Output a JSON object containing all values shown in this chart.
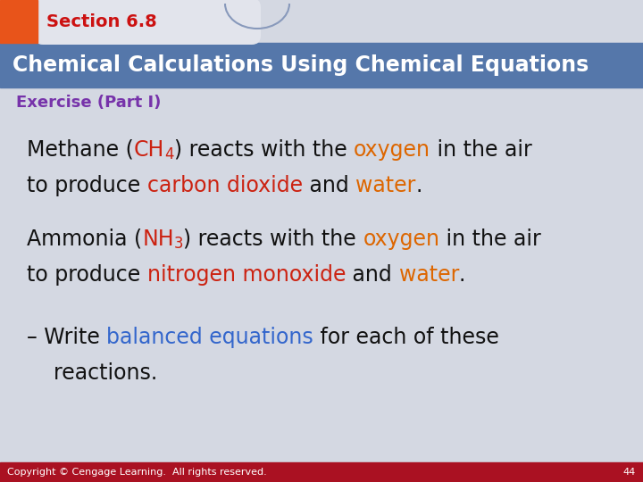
{
  "bg_color": "#d4d8e2",
  "orange_rect_color": "#e8541a",
  "tab_color": "#e2e4ec",
  "blue_bar_color": "#5577aa",
  "blue_bar_text": "Chemical Calculations Using Chemical Equations",
  "blue_bar_text_color": "#ffffff",
  "section_label": "Section 6.8",
  "section_label_color": "#cc1111",
  "exercise_label": "Exercise (Part I)",
  "exercise_label_color": "#7733aa",
  "footer_color": "#aa1122",
  "footer_text": "Copyright © Cengage Learning.  All rights reserved.",
  "footer_text_color": "#ffffff",
  "footer_number": "44",
  "body_color": "#111111",
  "red_color": "#cc2211",
  "orange_color": "#dd6600",
  "blue_color": "#3366cc",
  "fontsize_body": 17,
  "fontsize_header_bar": 17,
  "fontsize_section": 14,
  "fontsize_exercise": 13,
  "fontsize_footer": 8
}
